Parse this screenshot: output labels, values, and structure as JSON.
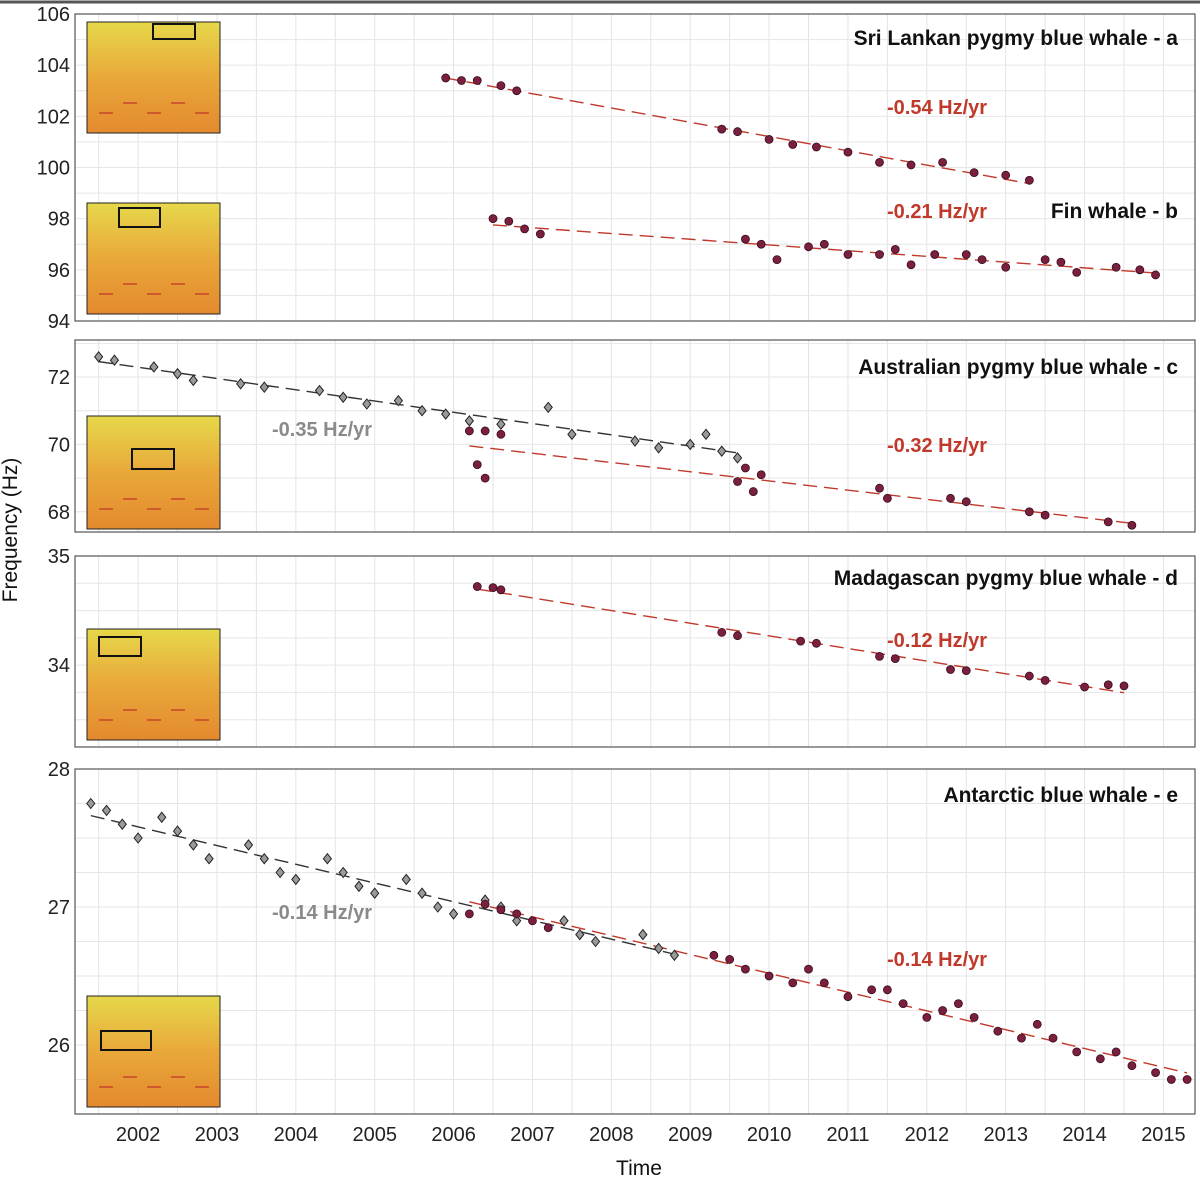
{
  "xlabel": "Time",
  "ylabel": "Frequency (Hz)",
  "colors": {
    "red_series": "#7a1f3d",
    "red_line": "#c0392b",
    "grey_series": "#9a9a9a",
    "grey_line": "#333333"
  },
  "chart_data": [
    {
      "type": "scatter",
      "title": "Sri Lankan pygmy blue whale - a",
      "xlim": [
        2001.4,
        2015.6
      ],
      "ylim": [
        94,
        106
      ],
      "yticks": [
        "106",
        "104",
        "102",
        "100",
        "98",
        "96",
        "94"
      ],
      "series": [
        {
          "marker": "circle",
          "trend": "-0.54 Hz/yr",
          "x": [
            2006.1,
            2006.3,
            2006.5,
            2006.8,
            2007.0,
            2009.6,
            2009.8,
            2010.2,
            2010.5,
            2010.8,
            2011.2,
            2011.6,
            2012.0,
            2012.4,
            2012.8,
            2013.2,
            2013.5
          ],
          "y": [
            103.5,
            103.4,
            103.4,
            103.2,
            103.0,
            101.5,
            101.4,
            101.1,
            100.9,
            100.8,
            100.6,
            100.2,
            100.1,
            100.2,
            99.8,
            99.7,
            99.5
          ]
        }
      ]
    },
    {
      "type": "scatter",
      "title": "Fin whale - b",
      "series": [
        {
          "marker": "circle",
          "trend": "-0.21 Hz/yr",
          "x": [
            2006.7,
            2006.9,
            2007.1,
            2007.3,
            2009.9,
            2010.1,
            2010.3,
            2010.7,
            2010.9,
            2011.2,
            2011.6,
            2011.8,
            2012.0,
            2012.3,
            2012.7,
            2012.9,
            2013.2,
            2013.7,
            2013.9,
            2014.1,
            2014.6,
            2014.9,
            2015.1
          ],
          "y": [
            98.0,
            97.9,
            97.6,
            97.4,
            97.2,
            97.0,
            96.4,
            96.9,
            97.0,
            96.6,
            96.6,
            96.8,
            96.2,
            96.6,
            96.6,
            96.4,
            96.1,
            96.4,
            96.3,
            95.9,
            96.1,
            96.0,
            95.8
          ]
        }
      ]
    },
    {
      "type": "scatter",
      "title": "Australian pygmy blue whale - c",
      "xlim": [
        2001.4,
        2015.6
      ],
      "ylim": [
        67.4,
        73.1
      ],
      "yticks": [
        "72",
        "70",
        "68"
      ],
      "series": [
        {
          "marker": "diamond",
          "trend": "-0.35 Hz/yr",
          "x": [
            2001.7,
            2001.9,
            2002.4,
            2002.7,
            2002.9,
            2003.5,
            2003.8,
            2004.5,
            2004.8,
            2005.1,
            2005.5,
            2005.8,
            2006.1,
            2006.4,
            2006.8,
            2007.4,
            2007.7,
            2008.5,
            2008.8,
            2009.2,
            2009.4,
            2009.6,
            2009.8
          ],
          "y": [
            72.6,
            72.5,
            72.3,
            72.1,
            71.9,
            71.8,
            71.7,
            71.6,
            71.4,
            71.2,
            71.3,
            71.0,
            70.9,
            70.7,
            70.6,
            71.1,
            70.3,
            70.1,
            69.9,
            70.0,
            70.3,
            69.8,
            69.6
          ]
        },
        {
          "marker": "circle",
          "trend": "-0.32 Hz/yr",
          "x": [
            2006.4,
            2006.6,
            2006.8,
            2006.5,
            2006.6,
            2009.8,
            2009.9,
            2010.0,
            2010.1,
            2011.6,
            2011.7,
            2012.5,
            2012.7,
            2013.5,
            2013.7,
            2014.5,
            2014.8
          ],
          "y": [
            70.4,
            70.4,
            70.3,
            69.4,
            69.0,
            68.9,
            69.3,
            68.6,
            69.1,
            68.7,
            68.4,
            68.4,
            68.3,
            68.0,
            67.9,
            67.7,
            67.6
          ]
        }
      ]
    },
    {
      "type": "scatter",
      "title": "Madagascan pygmy blue whale - d",
      "xlim": [
        2001.4,
        2015.6
      ],
      "ylim": [
        33.5,
        35.0
      ],
      "yticks": [
        "35",
        "34"
      ],
      "series": [
        {
          "marker": "circle",
          "trend": "-0.12 Hz/yr",
          "x": [
            2006.5,
            2006.7,
            2006.8,
            2009.6,
            2009.8,
            2010.6,
            2010.8,
            2011.6,
            2011.8,
            2012.5,
            2012.7,
            2013.5,
            2013.7,
            2014.2,
            2014.5,
            2014.7
          ],
          "y": [
            34.72,
            34.71,
            34.69,
            34.3,
            34.27,
            34.22,
            34.2,
            34.08,
            34.06,
            33.96,
            33.95,
            33.9,
            33.86,
            33.8,
            33.82,
            33.81
          ]
        }
      ]
    },
    {
      "type": "scatter",
      "title": "Antarctic blue whale - e",
      "xlim": [
        2001.4,
        2015.6
      ],
      "ylim": [
        25.5,
        28
      ],
      "yticks": [
        "28",
        "27",
        "26"
      ],
      "series": [
        {
          "marker": "diamond",
          "trend": "-0.14 Hz/yr",
          "x": [
            2001.6,
            2001.8,
            2002.0,
            2002.2,
            2002.5,
            2002.7,
            2002.9,
            2003.1,
            2003.6,
            2003.8,
            2004.0,
            2004.2,
            2004.6,
            2004.8,
            2005.0,
            2005.2,
            2005.6,
            2005.8,
            2006.0,
            2006.2,
            2006.6,
            2006.8,
            2007.0,
            2007.6,
            2007.8,
            2008.0,
            2008.6,
            2008.8,
            2009.0
          ],
          "y": [
            27.75,
            27.7,
            27.6,
            27.5,
            27.65,
            27.55,
            27.45,
            27.35,
            27.45,
            27.35,
            27.25,
            27.2,
            27.35,
            27.25,
            27.15,
            27.1,
            27.2,
            27.1,
            27.0,
            26.95,
            27.05,
            27.0,
            26.9,
            26.9,
            26.8,
            26.75,
            26.8,
            26.7,
            26.65
          ]
        },
        {
          "marker": "circle",
          "trend": "-0.14 Hz/yr",
          "x": [
            2006.4,
            2006.6,
            2006.8,
            2007.0,
            2007.2,
            2007.4,
            2009.5,
            2009.7,
            2009.9,
            2010.2,
            2010.5,
            2010.7,
            2010.9,
            2011.2,
            2011.5,
            2011.7,
            2011.9,
            2012.2,
            2012.4,
            2012.6,
            2012.8,
            2013.1,
            2013.4,
            2013.6,
            2013.8,
            2014.1,
            2014.4,
            2014.6,
            2014.8,
            2015.1,
            2015.3,
            2015.5
          ],
          "y": [
            26.95,
            27.02,
            26.98,
            26.95,
            26.9,
            26.85,
            26.65,
            26.62,
            26.55,
            26.5,
            26.45,
            26.55,
            26.45,
            26.35,
            26.4,
            26.4,
            26.3,
            26.2,
            26.25,
            26.3,
            26.2,
            26.1,
            26.05,
            26.15,
            26.05,
            25.95,
            25.9,
            25.95,
            25.85,
            25.8,
            25.75,
            25.75
          ]
        }
      ]
    }
  ],
  "xticks": [
    "2002",
    "2003",
    "2004",
    "2005",
    "2006",
    "2007",
    "2008",
    "2009",
    "2010",
    "2011",
    "2012",
    "2013",
    "2014",
    "2015"
  ]
}
